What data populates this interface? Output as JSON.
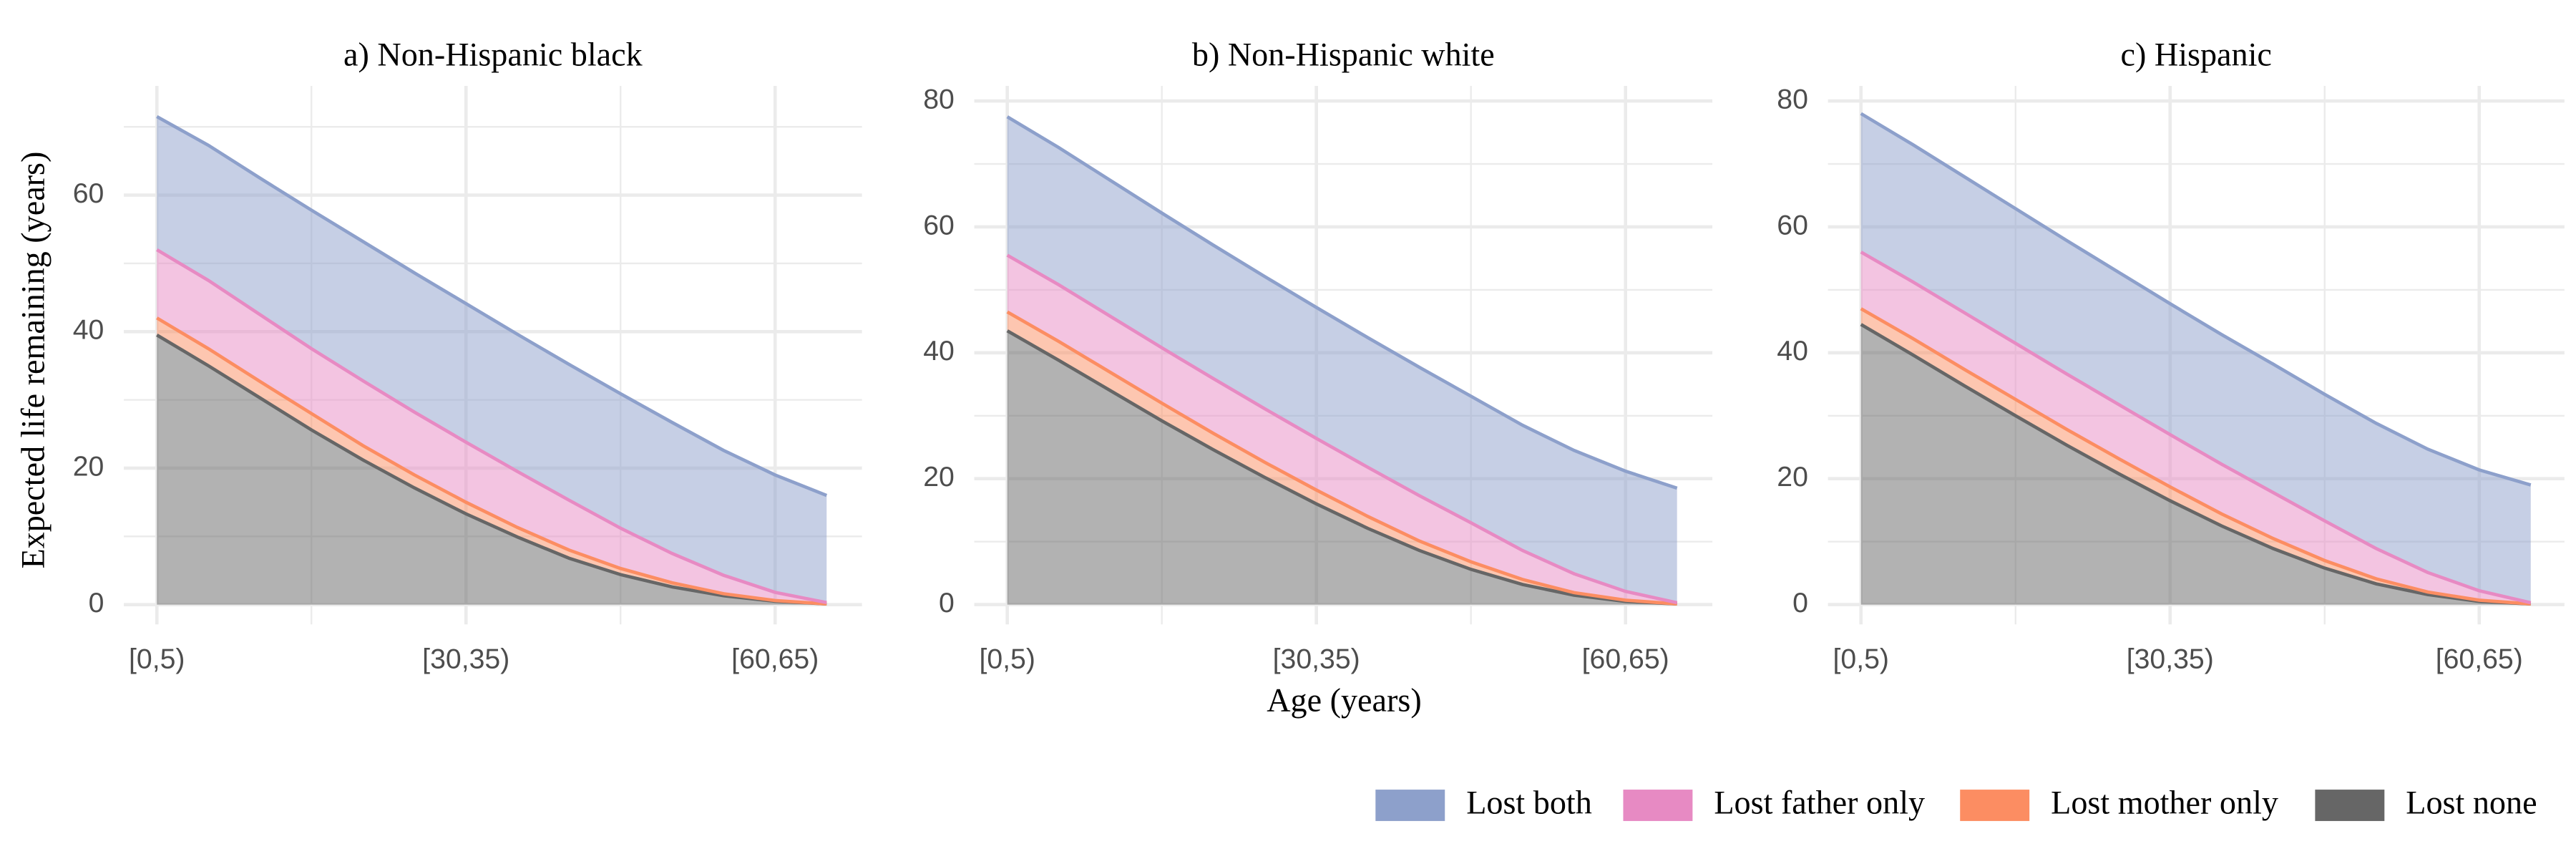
{
  "chart_data": [
    {
      "type": "area",
      "stacked": true,
      "title": "a) Non-Hispanic black",
      "y_label": "Expected life remaining (years)",
      "grid": true,
      "categories": [
        "[0,5)",
        null,
        null,
        null,
        null,
        null,
        "[30,35)",
        null,
        null,
        null,
        null,
        null,
        "[60,65)",
        null
      ],
      "ylim": [
        -2.9,
        76
      ],
      "yticks": [
        0,
        20,
        40,
        60
      ],
      "series": [
        {
          "name": "Lost both",
          "color": "#8DA0CB",
          "values": [
            19.5,
            19.8,
            20,
            20.3,
            20.4,
            20.4,
            20.3,
            20.1,
            19.9,
            19.7,
            19.2,
            18.3,
            17.2,
            15.7
          ]
        },
        {
          "name": "Lost father only",
          "color": "#E78AC3",
          "values": [
            10,
            10,
            9.8,
            9.5,
            9.5,
            9.2,
            8.8,
            8.2,
            7.3,
            5.9,
            4.3,
            2.7,
            1.2,
            0.2
          ]
        },
        {
          "name": "Lost mother only",
          "color": "#FC8D62",
          "values": [
            2.5,
            2.5,
            2.4,
            2.4,
            2.1,
            1.9,
            1.7,
            1.4,
            1.2,
            0.9,
            0.6,
            0.3,
            0.1,
            0
          ]
        },
        {
          "name": "Lost none",
          "color": "#666666",
          "values": [
            39.5,
            35,
            30.3,
            25.6,
            21.2,
            17.1,
            13.3,
            9.9,
            6.8,
            4.4,
            2.6,
            1.3,
            0.5,
            0.1
          ]
        }
      ]
    },
    {
      "type": "area",
      "stacked": true,
      "title": "b) Non-Hispanic white",
      "x_label": "Age (years)",
      "grid": true,
      "categories": [
        "[0,5)",
        null,
        null,
        null,
        null,
        null,
        "[30,35)",
        null,
        null,
        null,
        null,
        null,
        "[60,65)",
        null
      ],
      "ylim": [
        -3.15,
        82.4
      ],
      "yticks": [
        0,
        20,
        40,
        60,
        80
      ],
      "series": [
        {
          "name": "Lost both",
          "color": "#8DA0CB",
          "values": [
            22,
            21.8,
            21.6,
            21.4,
            21.2,
            21,
            20.8,
            20.6,
            20.4,
            20.1,
            19.9,
            19.6,
            19.1,
            18.2
          ]
        },
        {
          "name": "Lost father only",
          "color": "#E78AC3",
          "values": [
            9,
            9,
            8.9,
            8.8,
            8.7,
            8.5,
            8.2,
            7.8,
            7.2,
            6.2,
            4.6,
            3,
            1.4,
            0.2
          ]
        },
        {
          "name": "Lost mother only",
          "color": "#FC8D62",
          "values": [
            3,
            3,
            2.9,
            2.8,
            2.6,
            2.4,
            2.2,
            1.9,
            1.5,
            1.2,
            0.8,
            0.4,
            0.2,
            0
          ]
        },
        {
          "name": "Lost none",
          "color": "#666666",
          "values": [
            43.5,
            38.8,
            34,
            29.2,
            24.6,
            20.2,
            16,
            12.1,
            8.6,
            5.6,
            3.2,
            1.5,
            0.5,
            0.1
          ]
        }
      ]
    },
    {
      "type": "area",
      "stacked": true,
      "title": "c) Hispanic",
      "grid": true,
      "categories": [
        "[0,5)",
        null,
        null,
        null,
        null,
        null,
        "[30,35)",
        null,
        null,
        null,
        null,
        null,
        "[60,65)",
        null
      ],
      "ylim": [
        -3.15,
        82.4
      ],
      "yticks": [
        0,
        20,
        40,
        60,
        80
      ],
      "series": [
        {
          "name": "Lost both",
          "color": "#8DA0CB",
          "values": [
            22,
            21.8,
            21.6,
            21.4,
            21.2,
            21,
            20.8,
            20.6,
            20.4,
            20.1,
            19.9,
            19.6,
            19.2,
            18.7
          ]
        },
        {
          "name": "Lost father only",
          "color": "#E78AC3",
          "values": [
            9,
            9,
            9,
            8.9,
            8.8,
            8.6,
            8.3,
            7.9,
            7.3,
            6.3,
            4.8,
            3.1,
            1.5,
            0.2
          ]
        },
        {
          "name": "Lost mother only",
          "color": "#FC8D62",
          "values": [
            2.5,
            2.6,
            2.6,
            2.6,
            2.5,
            2.4,
            2.2,
            1.9,
            1.6,
            1.2,
            0.8,
            0.4,
            0.2,
            0
          ]
        },
        {
          "name": "Lost none",
          "color": "#666666",
          "values": [
            44.5,
            39.7,
            34.8,
            30,
            25.3,
            20.8,
            16.5,
            12.5,
            8.9,
            5.8,
            3.3,
            1.6,
            0.5,
            0.1
          ]
        }
      ]
    }
  ]
}
